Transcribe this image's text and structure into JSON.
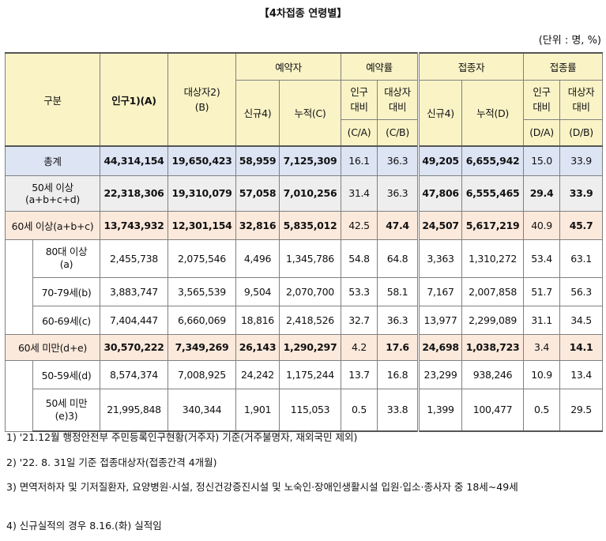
{
  "title": "【4차접종 연령별】",
  "unit": "(단위 : 명, %)",
  "header": {
    "category": "구분",
    "population_line1": "인구1)(A)",
    "target_line1": "대상자2)",
    "target_line2": "(B)",
    "reservation": "예약자",
    "reservation_rate": "예약률",
    "vaccinated": "접종자",
    "vaccination_rate": "접종률",
    "new": "신규4)",
    "cum_c": "누적(C)",
    "pop_ratio_l1": "인구",
    "pop_ratio_l2": "대비",
    "ca": "(C/A)",
    "tgt_ratio_l1": "대상자",
    "tgt_ratio_l2": "대비",
    "cb": "(C/B)",
    "new2": "신규4)",
    "cum_d": "누적(D)",
    "pop_ratio2_l1": "인구",
    "pop_ratio2_l2": "대비",
    "da": "(D/A)",
    "tgt_ratio2_l1": "대상자",
    "tgt_ratio2_l2": "대비",
    "db": "(D/B)"
  },
  "rows": {
    "total": {
      "label": "총계",
      "pop": "44,314,154",
      "target": "19,650,423",
      "res_new": "58,959",
      "res_cum": "7,125,309",
      "res_pop": "16.1",
      "res_tgt": "36.3",
      "vac_new": "49,205",
      "vac_cum": "6,655,942",
      "vac_pop": "15.0",
      "vac_tgt": "33.9"
    },
    "over50": {
      "label1": "50세 이상",
      "label2": "(a+b+c+d)",
      "pop": "22,318,306",
      "target": "19,310,079",
      "res_new": "57,058",
      "res_cum": "7,010,256",
      "res_pop": "31.4",
      "res_tgt": "36.3",
      "vac_new": "47,806",
      "vac_cum": "6,555,465",
      "vac_pop": "29.4",
      "vac_tgt": "33.9"
    },
    "over60": {
      "label": "60세 이상(a+b+c)",
      "pop": "13,743,932",
      "target": "12,301,154",
      "res_new": "32,816",
      "res_cum": "5,835,012",
      "res_pop": "42.5",
      "res_tgt": "47.4",
      "vac_new": "24,507",
      "vac_cum": "5,617,219",
      "vac_pop": "40.9",
      "vac_tgt": "45.7"
    },
    "age80": {
      "label1": "80대 이상",
      "label2": "(a)",
      "pop": "2,455,738",
      "target": "2,075,546",
      "res_new": "4,496",
      "res_cum": "1,345,786",
      "res_pop": "54.8",
      "res_tgt": "64.8",
      "vac_new": "3,363",
      "vac_cum": "1,310,272",
      "vac_pop": "53.4",
      "vac_tgt": "63.1"
    },
    "age70": {
      "label": "70-79세(b)",
      "pop": "3,883,747",
      "target": "3,565,539",
      "res_new": "9,504",
      "res_cum": "2,070,700",
      "res_pop": "53.3",
      "res_tgt": "58.1",
      "vac_new": "7,167",
      "vac_cum": "2,007,858",
      "vac_pop": "51.7",
      "vac_tgt": "56.3"
    },
    "age60": {
      "label": "60-69세(c)",
      "pop": "7,404,447",
      "target": "6,660,069",
      "res_new": "18,816",
      "res_cum": "2,418,526",
      "res_pop": "32.7",
      "res_tgt": "36.3",
      "vac_new": "13,977",
      "vac_cum": "2,299,089",
      "vac_pop": "31.1",
      "vac_tgt": "34.5"
    },
    "under60": {
      "label": "60세 미만(d+e)",
      "pop": "30,570,222",
      "target": "7,349,269",
      "res_new": "26,143",
      "res_cum": "1,290,297",
      "res_pop": "4.2",
      "res_tgt": "17.6",
      "vac_new": "24,698",
      "vac_cum": "1,038,723",
      "vac_pop": "3.4",
      "vac_tgt": "14.1"
    },
    "age50": {
      "label": "50-59세(d)",
      "pop": "8,574,374",
      "target": "7,008,925",
      "res_new": "24,242",
      "res_cum": "1,175,244",
      "res_pop": "13.7",
      "res_tgt": "16.8",
      "vac_new": "23,299",
      "vac_cum": "938,246",
      "vac_pop": "10.9",
      "vac_tgt": "13.4"
    },
    "under50": {
      "label1": "50세 미만",
      "label2": "(e)3)",
      "pop": "21,995,848",
      "target": "340,344",
      "res_new": "1,901",
      "res_cum": "115,053",
      "res_pop": "0.5",
      "res_tgt": "33.8",
      "vac_new": "1,399",
      "vac_cum": "100,477",
      "vac_pop": "0.5",
      "vac_tgt": "29.5"
    }
  },
  "notes": [
    "1) '21.12월 행정안전부 주민등록인구현황(거주자) 기준(거주불명자, 재외국민 제외)",
    "2) '22. 8. 31일 기준 접종대상자(접종간격 4개월)",
    "3) 면역저하자 및 기저질환자, 요양병원·시설, 정신건강증진시설 및 노숙인·장애인생활시설 입원·입소·종사자 중 18세~49세",
    "4) 신규실적의 경우 8.16.(화) 실적임"
  ]
}
